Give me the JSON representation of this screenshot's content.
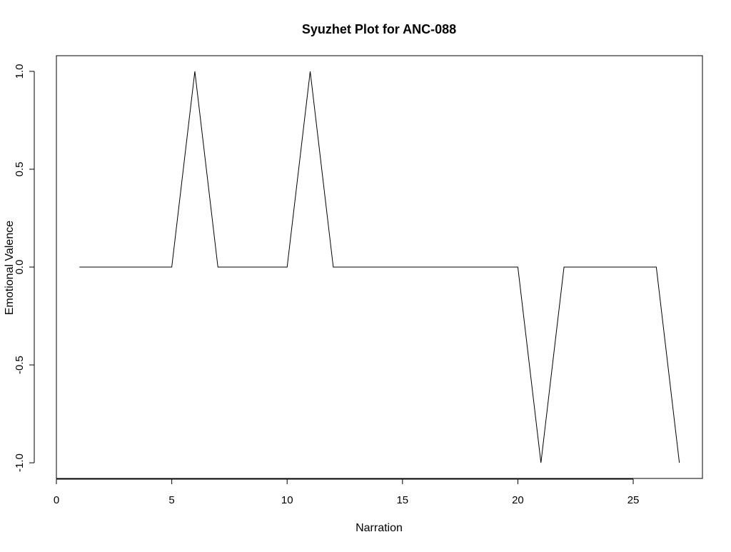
{
  "chart_data": {
    "type": "line",
    "title": "Syuzhet Plot for ANC-088",
    "xlabel": "Narration",
    "ylabel": "Emotional Valence",
    "x": [
      1,
      2,
      3,
      4,
      5,
      6,
      7,
      8,
      9,
      10,
      11,
      12,
      13,
      14,
      15,
      16,
      17,
      18,
      19,
      20,
      21,
      22,
      23,
      24,
      25,
      26,
      27
    ],
    "series": [
      {
        "values": [
          0,
          0,
          0,
          0,
          0,
          1,
          0,
          0,
          0,
          0,
          1,
          0,
          0,
          0,
          0,
          0,
          0,
          0,
          0,
          0,
          -1,
          0,
          0,
          0,
          0,
          0,
          -1
        ],
        "color": "#000000"
      }
    ],
    "xlim": [
      0,
      28
    ],
    "ylim": [
      -1.08,
      1.08
    ],
    "xticks": [
      0,
      5,
      10,
      15,
      20,
      25
    ],
    "xtick_labels": [
      "0",
      "5",
      "10",
      "15",
      "20",
      "25"
    ],
    "yticks": [
      -1.0,
      -0.5,
      0.0,
      0.5,
      1.0
    ],
    "ytick_labels": [
      "-1.0",
      "-0.5",
      "0.0",
      "0.5",
      "1.0"
    ],
    "grid": false,
    "legend": "none"
  }
}
